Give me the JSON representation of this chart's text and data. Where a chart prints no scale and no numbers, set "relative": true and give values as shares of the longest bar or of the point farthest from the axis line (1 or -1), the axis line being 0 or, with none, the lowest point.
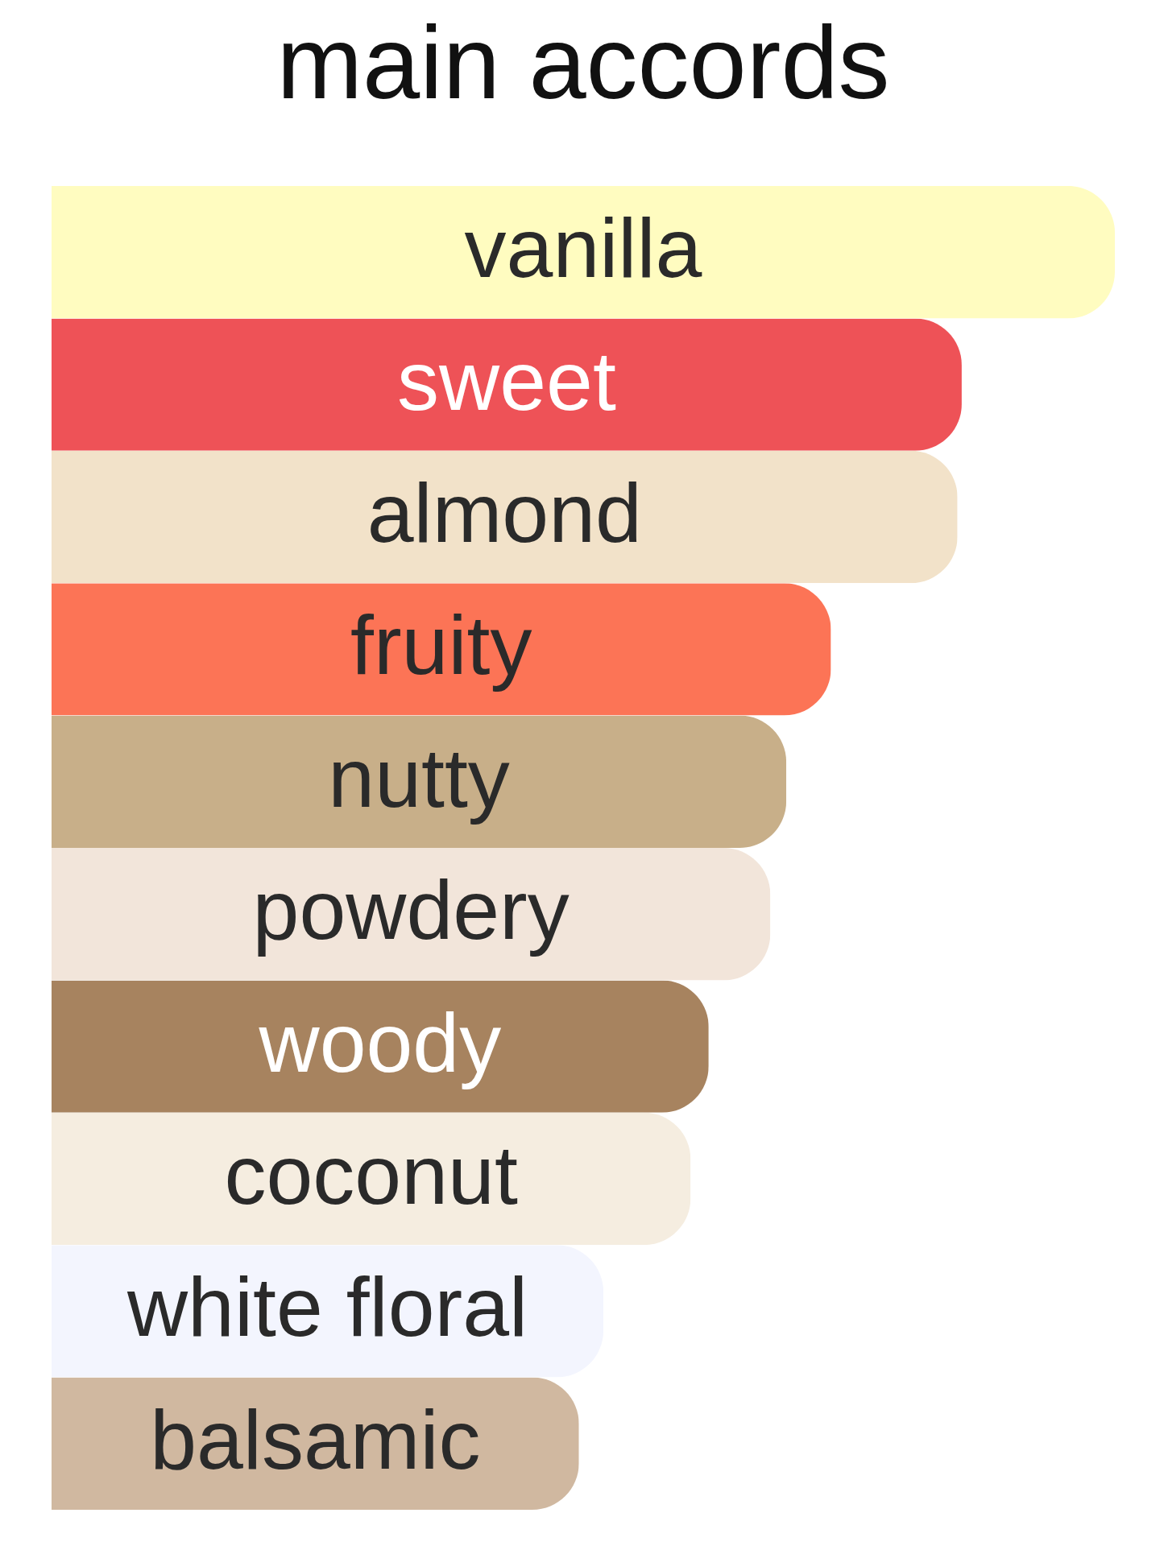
{
  "chart_data": {
    "type": "bar",
    "title": "main accords",
    "orientation": "horizontal",
    "relative": true,
    "categories": [
      "vanilla",
      "sweet",
      "almond",
      "fruity",
      "nutty",
      "powdery",
      "woody",
      "coconut",
      "white floral",
      "balsamic"
    ],
    "values": [
      1,
      0.856,
      0.852,
      0.733,
      0.691,
      0.676,
      0.618,
      0.601,
      0.519,
      0.496
    ],
    "colors": [
      "#fffcc0",
      "#ee5257",
      "#f2e2c9",
      "#fc7456",
      "#c8af89",
      "#f2e5da",
      "#a7835f",
      "#f5ede0",
      "#f3f5fe",
      "#d0b8a0"
    ]
  }
}
